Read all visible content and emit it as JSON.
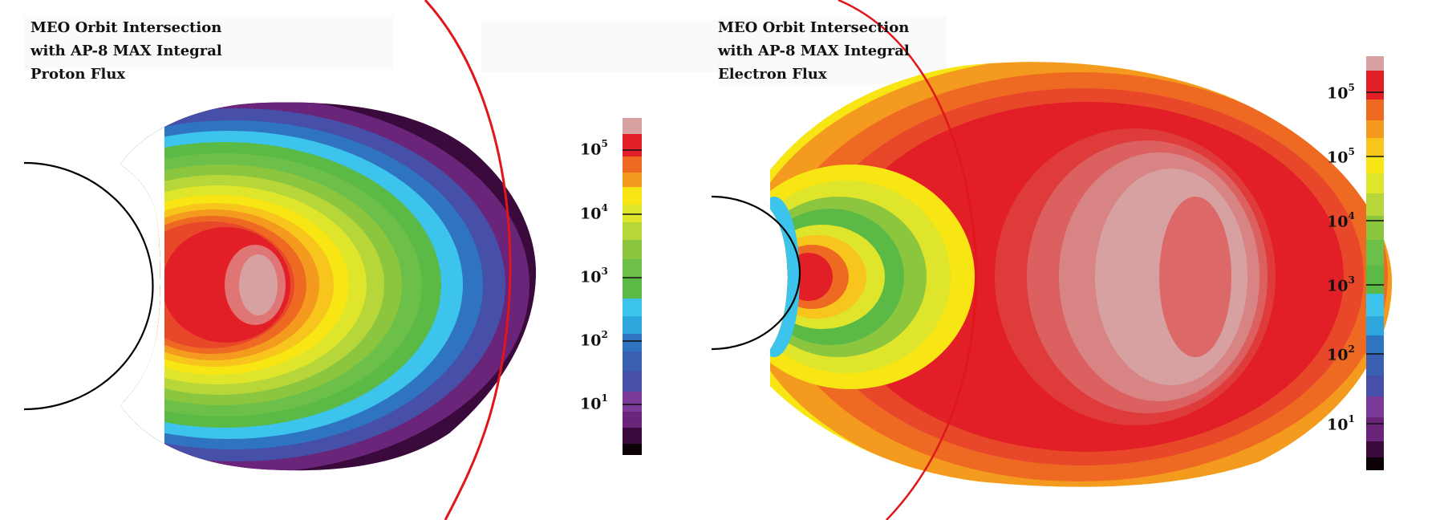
{
  "panels": [
    {
      "title_lines": [
        "MEO Orbit Intersection",
        "with AP-8 MAX Integral",
        "Proton Flux"
      ],
      "colorbar_ticks": [
        {
          "base": "10",
          "exp": "5"
        },
        {
          "base": "10",
          "exp": "4"
        },
        {
          "base": "10",
          "exp": "3"
        },
        {
          "base": "10",
          "exp": "2"
        },
        {
          "base": "10",
          "exp": "1"
        }
      ]
    },
    {
      "title_lines": [
        "MEO Orbit Intersection",
        "with AP-8 MAX Integral",
        "Electron Flux"
      ],
      "colorbar_ticks": [
        {
          "base": "10",
          "exp": "5"
        },
        {
          "base": "10",
          "exp": "5"
        },
        {
          "base": "10",
          "exp": "4"
        },
        {
          "base": "10",
          "exp": "3"
        },
        {
          "base": "10",
          "exp": "2"
        },
        {
          "base": "10",
          "exp": "1"
        }
      ]
    }
  ],
  "colors": {
    "orbit": "#e0161b",
    "earth_outline": "#000000",
    "scale": [
      "#0d0108",
      "#3b0a3c",
      "#6a2479",
      "#7a3a98",
      "#4650a8",
      "#3b5fb0",
      "#2f74c0",
      "#2da5dd",
      "#3cc4ec",
      "#5bb946",
      "#6cc04a",
      "#8cc63f",
      "#b6d63a",
      "#dfe52a",
      "#f7e614",
      "#f7c51c",
      "#f39a1f",
      "#ee6a23",
      "#e9472a",
      "#e21f26",
      "#d8a1a1"
    ]
  }
}
